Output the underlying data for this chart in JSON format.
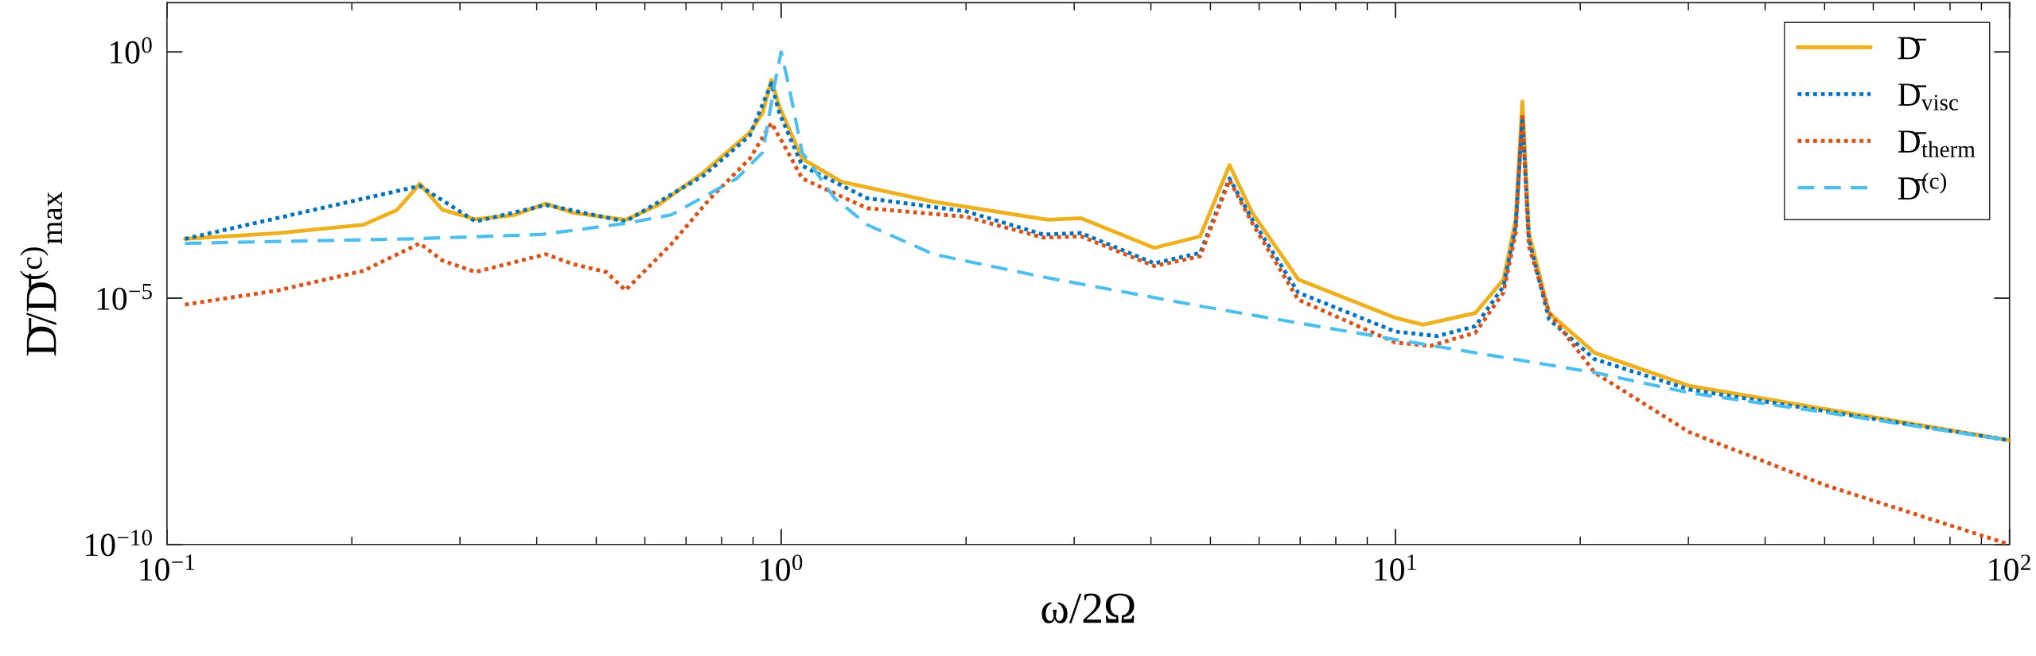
{
  "chart_data": {
    "type": "line",
    "xlabel": "ω/2Ω",
    "ylabel": "D̄/D̄$^{(c)}$$_{max}$",
    "log": "xy",
    "grid": false,
    "legend": "top right",
    "xlim": [
      0.1,
      100
    ],
    "xticks": [
      {
        "value": 0.1,
        "label": "10$^{−1}$"
      },
      {
        "value": 1,
        "label": "10$^{0}$"
      },
      {
        "value": 10,
        "label": "10$^{1}$"
      },
      {
        "value": 100,
        "label": "10$^{2}$"
      }
    ],
    "ylim": [
      1e-10,
      10
    ],
    "yticks": [
      {
        "value": 1e-10,
        "label": "10$^{−10}$"
      },
      {
        "value": 1e-05,
        "label": "10$^{−5}$"
      },
      {
        "value": 1,
        "label": "10$^{0}$"
      }
    ],
    "series": [
      {
        "name": "D̄",
        "color": "#edb120",
        "line_style": "solid",
        "x": [
          0.107,
          0.152,
          0.209,
          0.237,
          0.258,
          0.281,
          0.318,
          0.368,
          0.414,
          0.459,
          0.558,
          0.631,
          0.748,
          0.889,
          0.933,
          0.964,
          0.993,
          1.082,
          1.253,
          1.77,
          2.72,
          3.08,
          4.05,
          4.81,
          5.37,
          5.85,
          6.95,
          10,
          11.1,
          13.5,
          15.0,
          15.7,
          16.1,
          16.5,
          17.8,
          21.1,
          30.1,
          50.1,
          100
        ],
        "values": [
          0.00016,
          0.00021,
          0.00031,
          0.00062,
          0.0021,
          0.00062,
          0.0004,
          0.00049,
          0.00083,
          0.00054,
          0.00039,
          0.00078,
          0.0036,
          0.023,
          0.058,
          0.27,
          0.078,
          0.0068,
          0.0023,
          0.00091,
          0.00039,
          0.00042,
          0.000105,
          0.00018,
          0.005,
          0.00054,
          2.4e-05,
          4e-06,
          2.9e-06,
          5e-06,
          2.4e-05,
          0.00039,
          0.098,
          0.00021,
          5e-06,
          7.8e-07,
          1.66e-07,
          5.6e-08,
          1.3e-08
        ]
      },
      {
        "name": "D̄$_{visc}$",
        "color": "#0072bd",
        "line_style": "dotted",
        "x": [
          0.107,
          0.258,
          0.318,
          0.414,
          0.558,
          0.748,
          0.889,
          0.964,
          0.993,
          1.082,
          1.38,
          2.0,
          2.67,
          3.08,
          4.05,
          4.81,
          5.37,
          5.85,
          6.95,
          10,
          11.7,
          13.5,
          15.0,
          15.7,
          16.1,
          16.5,
          17.8,
          21.1,
          30.1,
          50.1,
          100
        ],
        "values": [
          0.00016,
          0.0019,
          0.00036,
          0.00078,
          0.00036,
          0.0031,
          0.02,
          0.23,
          0.058,
          0.0049,
          0.00107,
          0.00058,
          0.000196,
          0.00021,
          5.1e-05,
          8.3e-05,
          0.0027,
          0.00039,
          1.3e-05,
          2.1e-06,
          1.7e-06,
          2.7e-06,
          1.74e-05,
          0.00029,
          0.048,
          0.000155,
          3.7e-06,
          5.8e-07,
          1.4e-07,
          5.1e-08,
          1.3e-08
        ]
      },
      {
        "name": "D̄$_{therm}$",
        "color": "#d95319",
        "line_style": "dotted",
        "x": [
          0.107,
          0.152,
          0.209,
          0.258,
          0.281,
          0.318,
          0.414,
          0.459,
          0.519,
          0.558,
          0.662,
          0.767,
          0.889,
          0.964,
          1.005,
          1.082,
          1.38,
          2.0,
          2.67,
          3.08,
          4.05,
          4.81,
          5.37,
          5.85,
          6.95,
          10,
          11.4,
          13.5,
          15.0,
          15.7,
          16.1,
          16.5,
          17.8,
          21.1,
          30.1,
          50.1,
          100
        ],
        "values": [
          7.4e-06,
          1.45e-05,
          3.6e-05,
          0.00013,
          5.8e-05,
          3.4e-05,
          7.8e-05,
          4.9e-05,
          3.4e-05,
          1.45e-05,
          0.000124,
          0.00107,
          0.0068,
          0.036,
          0.0145,
          0.0027,
          0.00067,
          0.00045,
          0.00017,
          0.00018,
          4.5e-05,
          7.1e-05,
          0.0025,
          0.00033,
          9.3e-06,
          1.26e-06,
          1.07e-06,
          2e-06,
          1.3e-05,
          0.00021,
          0.056,
          0.000112,
          5e-06,
          3.1e-07,
          1.9e-08,
          1.6e-09,
          1e-10
        ]
      },
      {
        "name": "D̄$^{(c)}$",
        "color": "#4dbeee",
        "line_style": "dashed",
        "x": [
          0.107,
          0.249,
          0.406,
          0.558,
          0.662,
          0.847,
          0.933,
          0.979,
          1.0,
          1.03,
          1.082,
          1.222,
          1.38,
          1.77,
          2.67,
          4.81,
          10,
          21.1,
          30.1,
          50.1,
          100
        ],
        "values": [
          0.00013,
          0.00016,
          0.000196,
          0.00033,
          0.00049,
          0.0027,
          0.0091,
          0.27,
          1.0,
          0.196,
          0.0091,
          0.00107,
          0.00031,
          7.8e-05,
          2.7e-05,
          6.9e-06,
          1.45e-06,
          3.1e-07,
          1.2e-07,
          4.8e-08,
          1.3e-08
        ]
      }
    ]
  }
}
